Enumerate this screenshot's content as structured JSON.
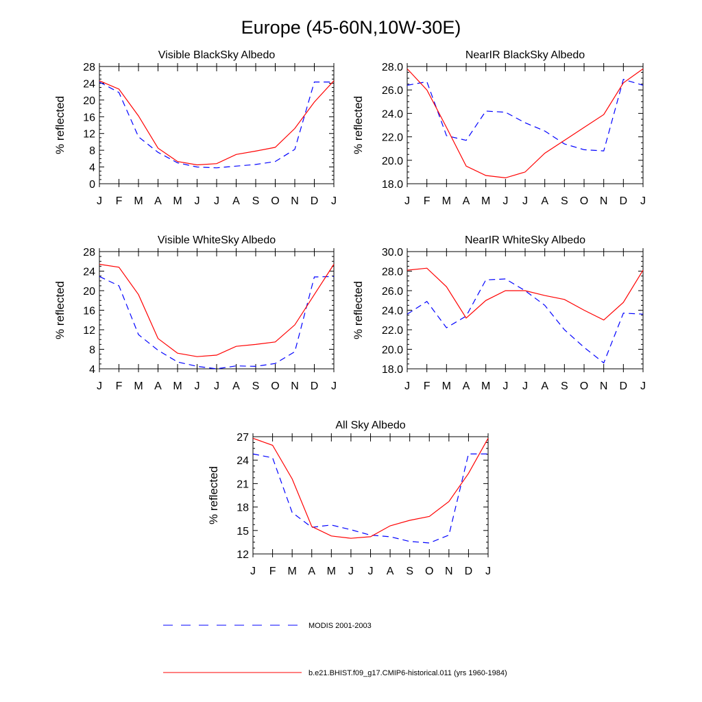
{
  "figure": {
    "title": "Europe (45-60N,10W-30E)"
  },
  "legend": {
    "entries": [
      {
        "label": "MODIS 2001-2003",
        "color": "#0000ff",
        "dash": true
      },
      {
        "label": "b.e21.BHIST.f09_g17.CMIP6-historical.011 (yrs 1960-1984)",
        "color": "#ff0000",
        "dash": false
      }
    ]
  },
  "chart_data": [
    {
      "type": "line",
      "title": "Visible BlackSky Albedo",
      "ylabel": "% reflected",
      "categories": [
        "J",
        "F",
        "M",
        "A",
        "M",
        "J",
        "J",
        "A",
        "S",
        "O",
        "N",
        "D",
        "J"
      ],
      "ylim": [
        0,
        28
      ],
      "yticks": [
        "0",
        "4",
        "8",
        "12",
        "16",
        "20",
        "24",
        "28"
      ],
      "series": [
        {
          "name": "MODIS 2001-2003",
          "color": "#0000ff",
          "dash": true,
          "values": [
            24.3,
            21.8,
            11.2,
            7.5,
            5.0,
            4.0,
            3.8,
            4.2,
            4.6,
            5.3,
            8.2,
            24.3,
            24.3
          ]
        },
        {
          "name": "b.e21.BHIST.f09_g17.CMIP6-historical.011 (yrs 1960-1984)",
          "color": "#ff0000",
          "dash": false,
          "values": [
            24.6,
            22.6,
            16.2,
            8.5,
            5.3,
            4.5,
            4.8,
            7.0,
            7.8,
            8.7,
            13.2,
            19.5,
            24.6
          ]
        }
      ]
    },
    {
      "type": "line",
      "title": "NearIR BlackSky Albedo",
      "ylabel": "% reflected",
      "categories": [
        "J",
        "F",
        "M",
        "A",
        "M",
        "J",
        "J",
        "A",
        "S",
        "O",
        "N",
        "D",
        "J"
      ],
      "ylim": [
        18,
        28
      ],
      "yticks": [
        "18.0",
        "20.0",
        "22.0",
        "24.0",
        "26.0",
        "28.0"
      ],
      "series": [
        {
          "name": "MODIS 2001-2003",
          "color": "#0000ff",
          "dash": true,
          "values": [
            26.4,
            26.7,
            22.1,
            21.7,
            24.2,
            24.1,
            23.2,
            22.5,
            21.4,
            20.9,
            20.8,
            26.9,
            26.4
          ]
        },
        {
          "name": "b.e21.BHIST.f09_g17.CMIP6-historical.011 (yrs 1960-1984)",
          "color": "#ff0000",
          "dash": false,
          "values": [
            27.8,
            26.0,
            22.8,
            19.5,
            18.7,
            18.5,
            19.0,
            20.6,
            21.7,
            22.8,
            23.9,
            26.6,
            27.8
          ]
        }
      ]
    },
    {
      "type": "line",
      "title": "Visible WhiteSky Albedo",
      "ylabel": "% reflected",
      "categories": [
        "J",
        "F",
        "M",
        "A",
        "M",
        "J",
        "J",
        "A",
        "S",
        "O",
        "N",
        "D",
        "J"
      ],
      "ylim": [
        4,
        28
      ],
      "yticks": [
        "4",
        "8",
        "12",
        "16",
        "20",
        "24",
        "28"
      ],
      "series": [
        {
          "name": "MODIS 2001-2003",
          "color": "#0000ff",
          "dash": true,
          "values": [
            22.9,
            21.0,
            11.0,
            7.8,
            5.4,
            4.5,
            4.0,
            4.6,
            4.5,
            5.1,
            7.5,
            22.8,
            22.9
          ]
        },
        {
          "name": "b.e21.BHIST.f09_g17.CMIP6-historical.011 (yrs 1960-1984)",
          "color": "#ff0000",
          "dash": false,
          "values": [
            25.4,
            24.8,
            19.2,
            10.2,
            7.2,
            6.5,
            6.8,
            8.6,
            9.0,
            9.5,
            13.0,
            19.2,
            25.4
          ]
        }
      ]
    },
    {
      "type": "line",
      "title": "NearIR WhiteSky Albedo",
      "ylabel": "% reflected",
      "categories": [
        "J",
        "F",
        "M",
        "A",
        "M",
        "J",
        "J",
        "A",
        "S",
        "O",
        "N",
        "D",
        "J"
      ],
      "ylim": [
        18,
        30
      ],
      "yticks": [
        "18.0",
        "20.0",
        "22.0",
        "24.0",
        "26.0",
        "28.0",
        "30.0"
      ],
      "series": [
        {
          "name": "MODIS 2001-2003",
          "color": "#0000ff",
          "dash": true,
          "values": [
            23.6,
            24.9,
            22.2,
            23.4,
            27.1,
            27.2,
            26.0,
            24.5,
            22.0,
            20.2,
            18.6,
            23.7,
            23.6
          ]
        },
        {
          "name": "b.e21.BHIST.f09_g17.CMIP6-historical.011 (yrs 1960-1984)",
          "color": "#ff0000",
          "dash": false,
          "values": [
            28.1,
            28.3,
            26.4,
            23.2,
            25.0,
            26.0,
            26.0,
            25.5,
            25.1,
            24.0,
            23.0,
            24.8,
            28.1
          ]
        }
      ]
    },
    {
      "type": "line",
      "title": "All Sky Albedo",
      "ylabel": "% reflected",
      "categories": [
        "J",
        "F",
        "M",
        "A",
        "M",
        "J",
        "J",
        "A",
        "S",
        "O",
        "N",
        "D",
        "J"
      ],
      "ylim": [
        12,
        27
      ],
      "yticks": [
        "12",
        "15",
        "18",
        "21",
        "24",
        "27"
      ],
      "series": [
        {
          "name": "MODIS 2001-2003",
          "color": "#0000ff",
          "dash": true,
          "values": [
            24.8,
            24.3,
            17.3,
            15.4,
            15.7,
            15.1,
            14.4,
            14.2,
            13.6,
            13.4,
            14.4,
            24.8,
            24.8
          ]
        },
        {
          "name": "b.e21.BHIST.f09_g17.CMIP6-historical.011 (yrs 1960-1984)",
          "color": "#ff0000",
          "dash": false,
          "values": [
            26.8,
            25.9,
            21.6,
            15.5,
            14.3,
            14.0,
            14.2,
            15.6,
            16.3,
            16.8,
            18.7,
            22.3,
            26.8
          ]
        }
      ]
    }
  ]
}
